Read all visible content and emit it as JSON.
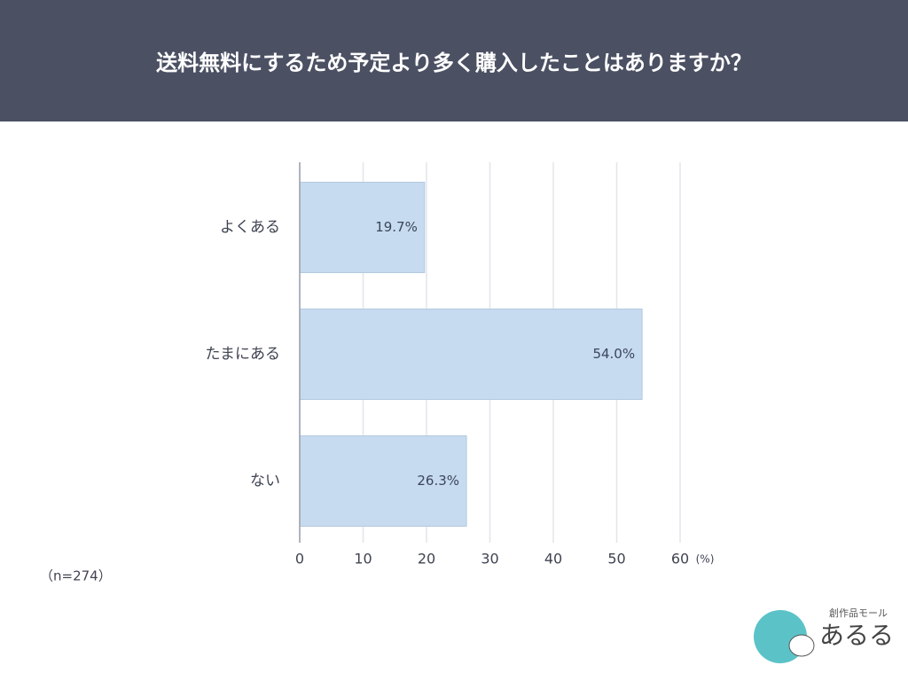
{
  "chart_data": {
    "type": "bar",
    "orientation": "horizontal",
    "title": "送料無料にするため予定より多く購入したことはありますか？",
    "categories": [
      "よくある",
      "たまにある",
      "ない"
    ],
    "values": [
      19.7,
      54.0,
      26.3
    ],
    "value_labels": [
      "19.7%",
      "54.0%",
      "26.3%"
    ],
    "color": "#c6dbf0",
    "xlim": [
      0,
      60
    ],
    "xticks": [
      0,
      10,
      20,
      30,
      40,
      50,
      60
    ],
    "grid": true,
    "xlabel": "(%)",
    "note": "（n=274）"
  },
  "logo": {
    "tagline": "創作品モール",
    "name": "あるる"
  }
}
